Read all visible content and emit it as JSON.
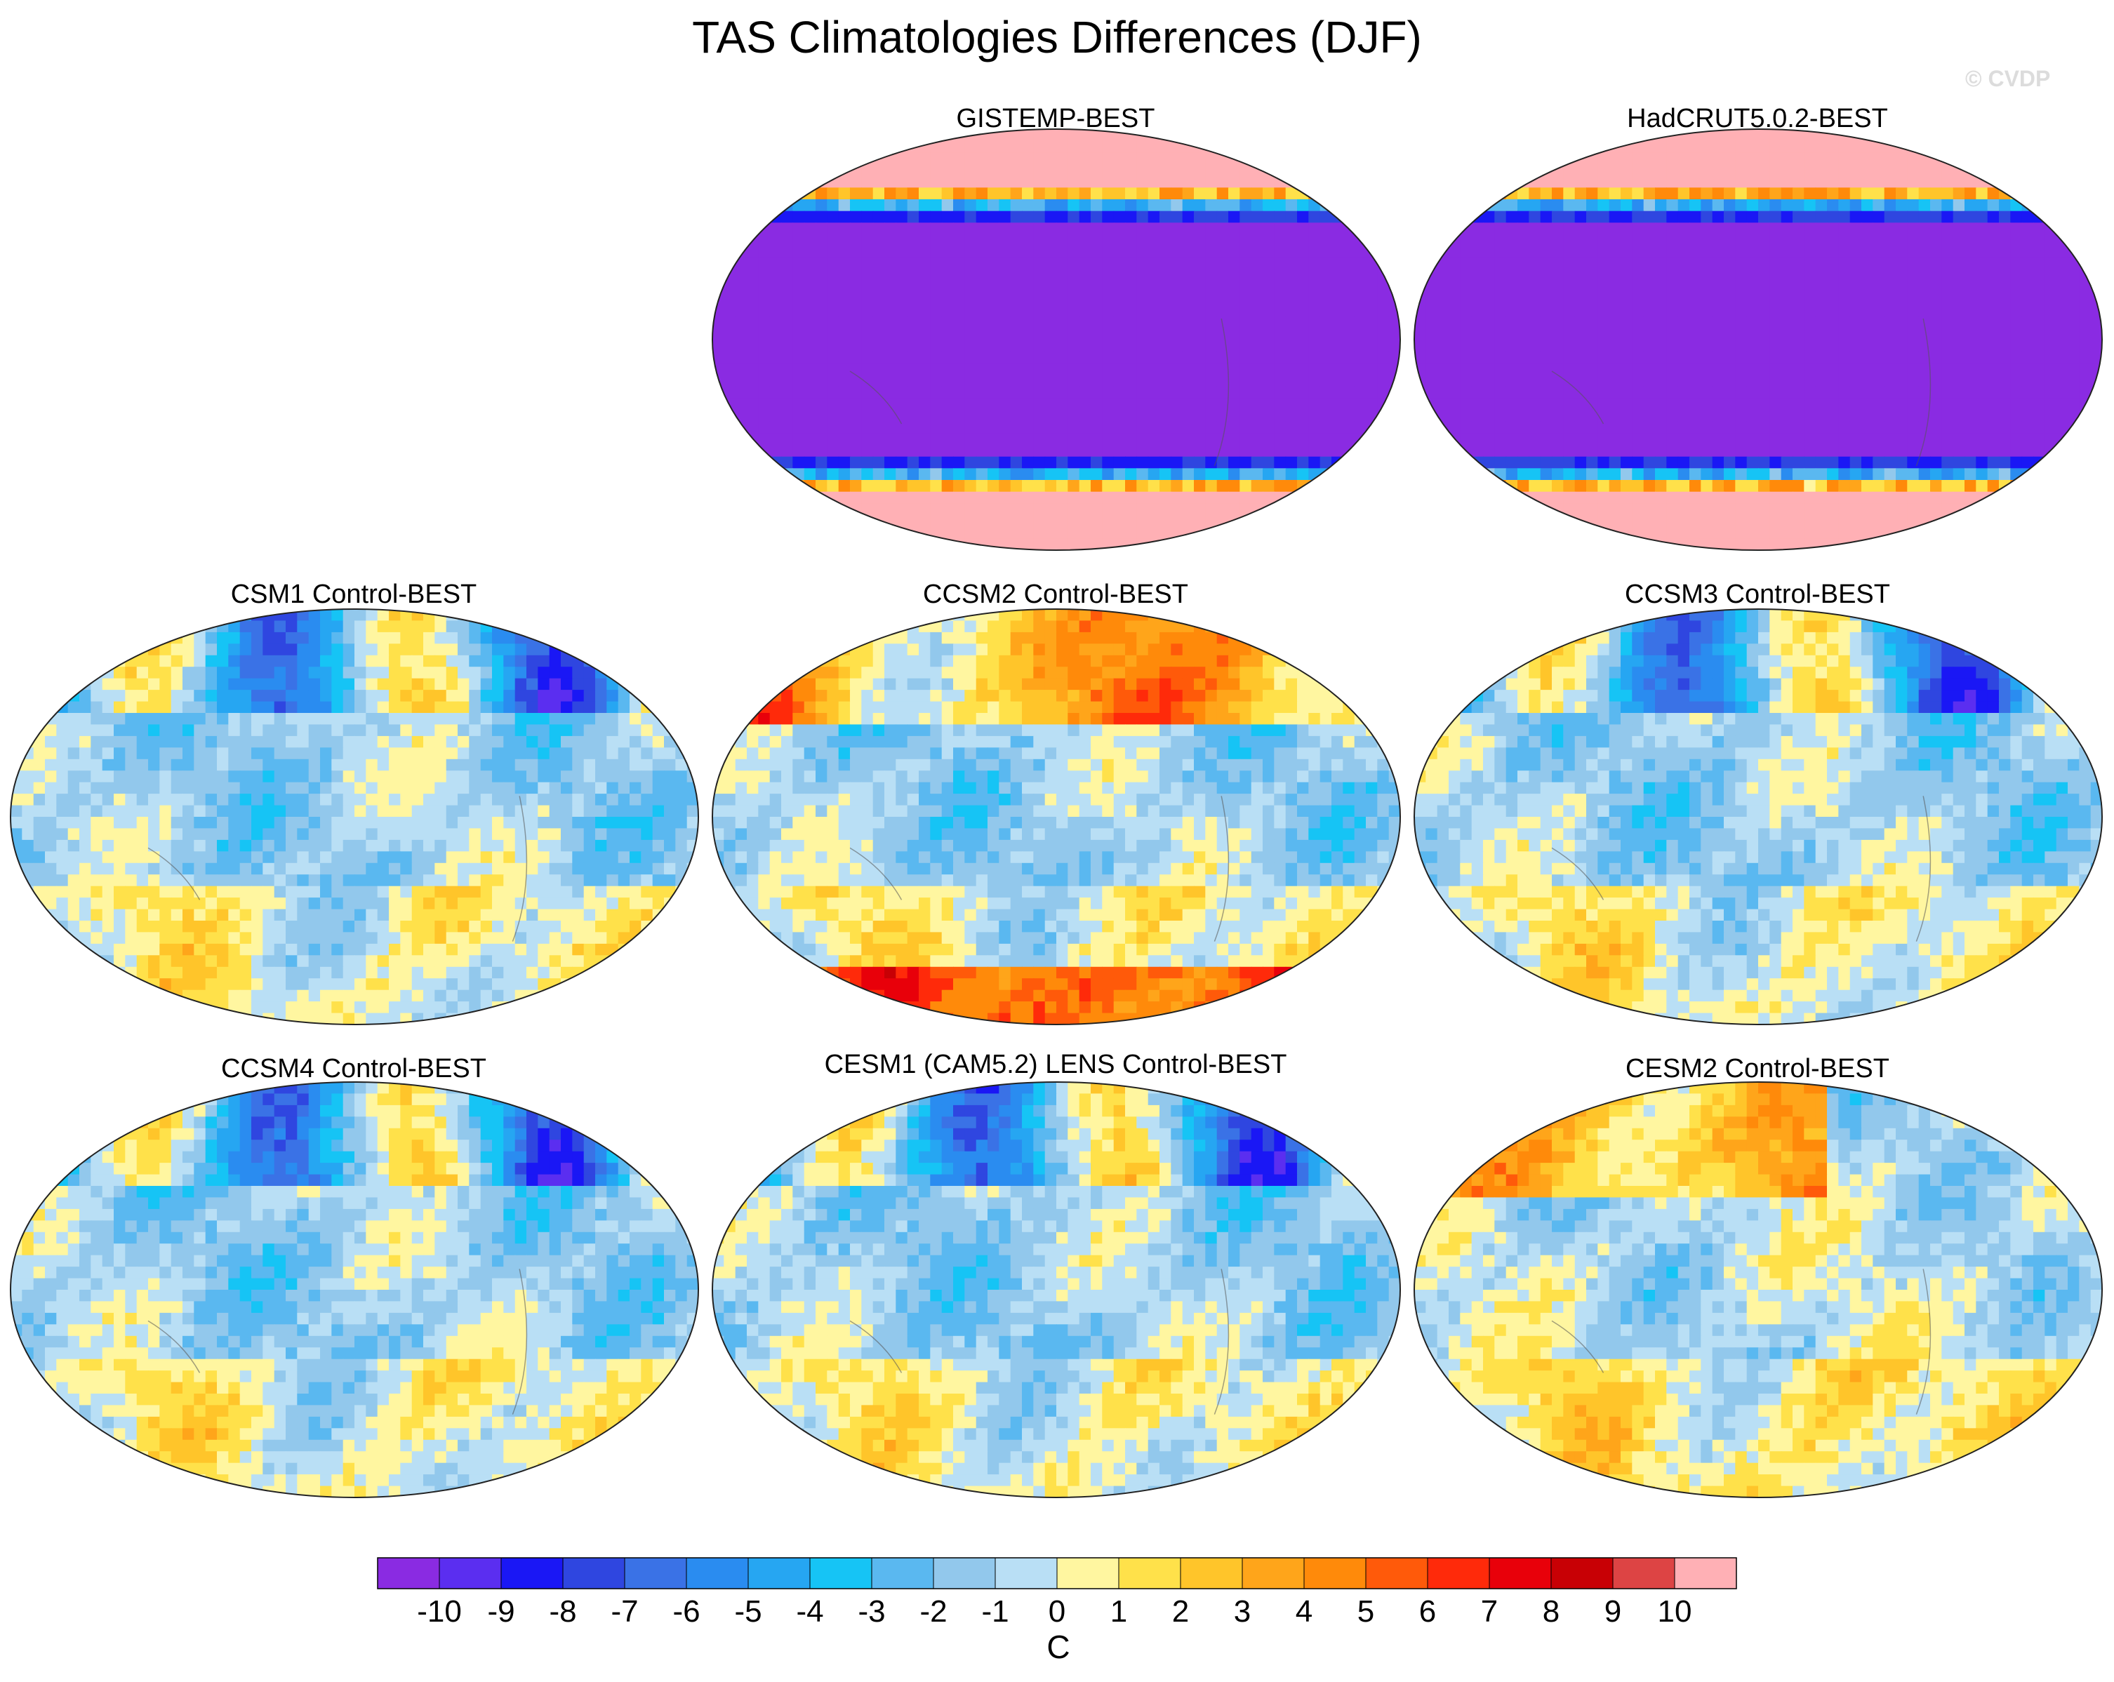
{
  "title": "TAS Climatologies Differences (DJF)",
  "watermark": "© CVDP",
  "panels": [
    {
      "id": "gistemp",
      "title": "GISTEMP-BEST",
      "pattern": "obs",
      "seed": 3
    },
    {
      "id": "hadcrut",
      "title": "HadCRUT5.0.2-BEST",
      "pattern": "obs",
      "seed": 5
    },
    {
      "id": "csm1",
      "title": "CSM1 Control-BEST",
      "pattern": "model",
      "seed": 11
    },
    {
      "id": "ccsm2",
      "title": "CCSM2 Control-BEST",
      "pattern": "model-warm",
      "seed": 17
    },
    {
      "id": "ccsm3",
      "title": "CCSM3 Control-BEST",
      "pattern": "model",
      "seed": 23
    },
    {
      "id": "ccsm4",
      "title": "CCSM4 Control-BEST",
      "pattern": "model",
      "seed": 29
    },
    {
      "id": "cesm1",
      "title": "CESM1 (CAM5.2) LENS Control-BEST",
      "pattern": "model",
      "seed": 31
    },
    {
      "id": "cesm2",
      "title": "CESM2 Control-BEST",
      "pattern": "model-warm2",
      "seed": 37
    }
  ],
  "colorbar": {
    "labels": [
      "-10",
      "-9",
      "-8",
      "-7",
      "-6",
      "-5",
      "-4",
      "-3",
      "-2",
      "-1",
      "0",
      "1",
      "2",
      "3",
      "4",
      "5",
      "6",
      "7",
      "8",
      "9",
      "10"
    ],
    "unit": "C",
    "colors": [
      "#8a2be2",
      "#5b2ef0",
      "#1a17f5",
      "#2f46e0",
      "#3a72e6",
      "#2a8cf0",
      "#26a6f2",
      "#16c4f5",
      "#5ab8f0",
      "#92c8ec",
      "#b9dff5",
      "#fff6a0",
      "#ffe14a",
      "#ffc52a",
      "#ffa51a",
      "#ff8a0a",
      "#ff5a0a",
      "#ff2a0a",
      "#e8000a",
      "#c80005",
      "#dd4444",
      "#ffb0b5"
    ]
  },
  "chart_data": {
    "type": "heatmap",
    "title": "TAS Climatologies Differences (DJF)",
    "projection": "Robinson (global)",
    "colorbar_levels": [
      -10,
      -9,
      -8,
      -7,
      -6,
      -5,
      -4,
      -3,
      -2,
      -1,
      0,
      1,
      2,
      3,
      4,
      5,
      6,
      7,
      8,
      9,
      10
    ],
    "colorbar_unit": "C",
    "panels": [
      "GISTEMP-BEST",
      "HadCRUT5.0.2-BEST",
      "CSM1 Control-BEST",
      "CCSM2 Control-BEST",
      "CCSM3 Control-BEST",
      "CCSM4 Control-BEST",
      "CESM1 (CAM5.2) LENS Control-BEST",
      "CESM2 Control-BEST"
    ]
  }
}
